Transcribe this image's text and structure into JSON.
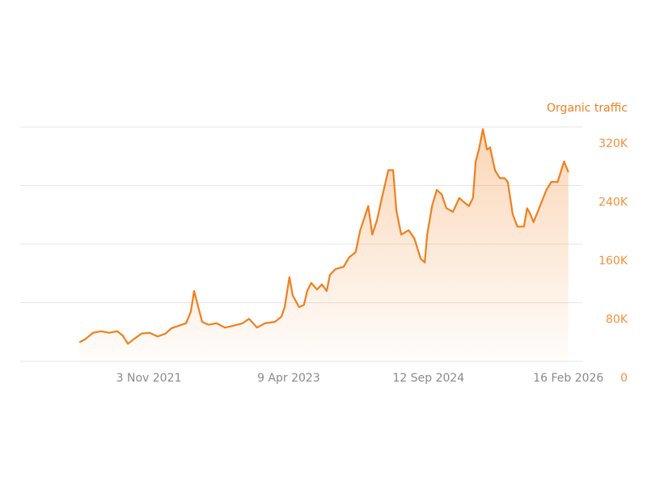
{
  "chart_data": {
    "type": "area",
    "x": [
      "2021-02-17",
      "2021-03-10",
      "2021-04-09",
      "2021-05-09",
      "2021-06-08",
      "2021-07-08",
      "2021-07-29",
      "2021-08-17",
      "2021-09-07",
      "2021-10-07",
      "2021-11-06",
      "2021-12-06",
      "2022-01-05",
      "2022-01-26",
      "2022-02-26",
      "2022-03-22",
      "2022-04-09",
      "2022-04-21",
      "2022-05-03",
      "2022-05-21",
      "2022-06-14",
      "2022-07-14",
      "2022-08-14",
      "2022-09-19",
      "2022-10-19",
      "2022-11-12",
      "2022-12-12",
      "2023-01-11",
      "2023-02-17",
      "2023-03-13",
      "2023-03-25",
      "2023-04-12",
      "2023-04-24",
      "2023-05-18",
      "2023-06-05",
      "2023-06-17",
      "2023-07-02",
      "2023-07-24",
      "2023-08-11",
      "2023-08-29",
      "2023-09-10",
      "2023-10-01",
      "2023-10-31",
      "2023-11-21",
      "2023-12-15",
      "2024-01-01",
      "2024-01-16",
      "2024-01-31",
      "2024-02-15",
      "2024-03-04",
      "2024-03-22",
      "2024-04-15",
      "2024-05-03",
      "2024-05-15",
      "2024-06-02",
      "2024-06-30",
      "2024-07-21",
      "2024-08-14",
      "2024-08-29",
      "2024-09-07",
      "2024-09-25",
      "2024-10-13",
      "2024-10-31",
      "2024-11-18",
      "2024-12-12",
      "2025-01-05",
      "2025-01-23",
      "2025-02-10",
      "2025-02-25",
      "2025-03-07",
      "2025-03-19",
      "2025-04-03",
      "2025-04-18",
      "2025-04-30",
      "2025-05-18",
      "2025-06-05",
      "2025-06-23",
      "2025-07-05",
      "2025-07-23",
      "2025-08-10",
      "2025-09-03",
      "2025-09-15",
      "2025-09-27",
      "2025-10-09",
      "2025-11-02",
      "2025-11-26",
      "2025-12-14",
      "2026-01-07",
      "2026-01-31",
      "2026-02-16"
    ],
    "series": [
      {
        "name": "Organic traffic",
        "color": "#f07f1d",
        "values": [
          26000,
          30000,
          39000,
          41000,
          39000,
          41000,
          35000,
          24000,
          30000,
          38000,
          39000,
          34000,
          38000,
          45000,
          49000,
          52000,
          68000,
          96000,
          79000,
          54000,
          50000,
          52000,
          46000,
          49000,
          52000,
          58000,
          46000,
          52000,
          54000,
          61000,
          74000,
          115000,
          90000,
          74000,
          77000,
          96000,
          107000,
          98000,
          105000,
          96000,
          118000,
          126000,
          129000,
          142000,
          149000,
          179000,
          195000,
          212000,
          173000,
          193000,
          223000,
          261000,
          261000,
          206000,
          173000,
          179000,
          168000,
          140000,
          135000,
          173000,
          212000,
          234000,
          228000,
          209000,
          204000,
          223000,
          217000,
          212000,
          223000,
          273000,
          289000,
          317000,
          289000,
          292000,
          261000,
          250000,
          250000,
          245000,
          201000,
          184000,
          184000,
          209000,
          201000,
          190000,
          212000,
          234000,
          245000,
          245000,
          273000,
          258000
        ]
      }
    ],
    "xlim": [
      "2020-07-11",
      "2026-04-09"
    ],
    "xticks": [
      {
        "value": "2021-11-03",
        "label": "3 Nov 2021"
      },
      {
        "value": "2023-04-09",
        "label": "9 Apr 2023"
      },
      {
        "value": "2024-09-12",
        "label": "12 Sep 2024"
      },
      {
        "value": "2026-02-16",
        "label": "16 Feb 2026"
      }
    ],
    "ylim": [
      0,
      320000
    ],
    "yticks": [
      0,
      {
        "value": 80000,
        "label": "80K"
      },
      {
        "value": 160000,
        "label": "160K"
      },
      {
        "value": 240000,
        "label": "240K"
      },
      {
        "value": 320000,
        "label": "320K"
      }
    ],
    "grid": true
  }
}
